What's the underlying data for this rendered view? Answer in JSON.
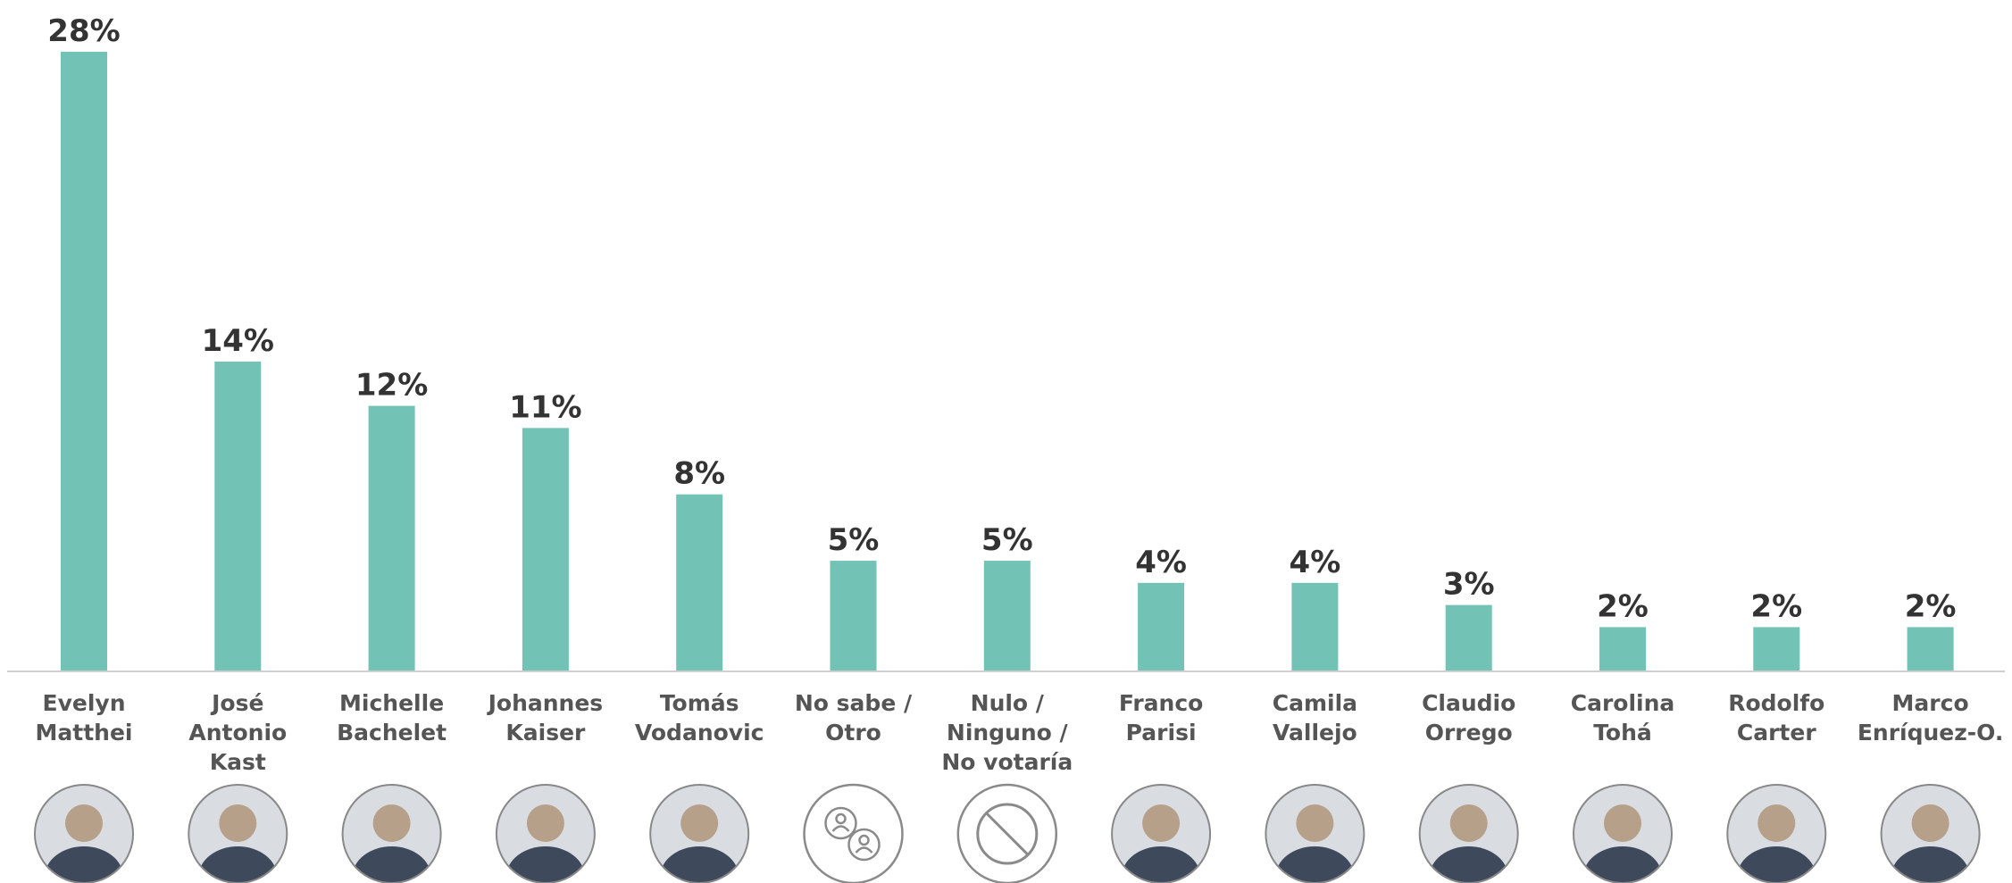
{
  "chart_data": {
    "type": "bar",
    "title": "",
    "xlabel": "",
    "ylabel": "",
    "ylim": [
      0,
      28
    ],
    "grid": false,
    "legend": "none",
    "bar_color": "#72c2b5",
    "categories": [
      {
        "lines": [
          "Evelyn",
          "Matthei"
        ],
        "label": "28%",
        "value": 28,
        "avatar": "person-photo-icon"
      },
      {
        "lines": [
          "José",
          "Antonio",
          "Kast"
        ],
        "label": "14%",
        "value": 14,
        "avatar": "person-photo-icon"
      },
      {
        "lines": [
          "Michelle",
          "Bachelet"
        ],
        "label": "12%",
        "value": 12,
        "avatar": "person-photo-icon"
      },
      {
        "lines": [
          "Johannes",
          "Kaiser"
        ],
        "label": "11%",
        "value": 11,
        "avatar": "person-photo-icon"
      },
      {
        "lines": [
          "Tomás",
          "Vodanovic"
        ],
        "label": "8%",
        "value": 8,
        "avatar": "person-photo-icon"
      },
      {
        "lines": [
          "No sabe /",
          "Otro"
        ],
        "label": "5%",
        "value": 5,
        "avatar": "people-target-icon"
      },
      {
        "lines": [
          "Nulo /",
          "Ninguno /",
          "No votaría"
        ],
        "label": "5%",
        "value": 5,
        "avatar": "prohibited-icon"
      },
      {
        "lines": [
          "Franco",
          "Parisi"
        ],
        "label": "4%",
        "value": 4,
        "avatar": "person-photo-icon"
      },
      {
        "lines": [
          "Camila",
          "Vallejo"
        ],
        "label": "4%",
        "value": 4,
        "avatar": "person-photo-icon"
      },
      {
        "lines": [
          "Claudio",
          "Orrego"
        ],
        "label": "3%",
        "value": 3,
        "avatar": "person-photo-icon"
      },
      {
        "lines": [
          "Carolina",
          "Tohá"
        ],
        "label": "2%",
        "value": 2,
        "avatar": "person-photo-icon"
      },
      {
        "lines": [
          "Rodolfo",
          "Carter"
        ],
        "label": "2%",
        "value": 2,
        "avatar": "person-photo-icon"
      },
      {
        "lines": [
          "Marco",
          "Enríquez-O."
        ],
        "label": "2%",
        "value": 2,
        "avatar": "person-photo-icon"
      }
    ]
  }
}
